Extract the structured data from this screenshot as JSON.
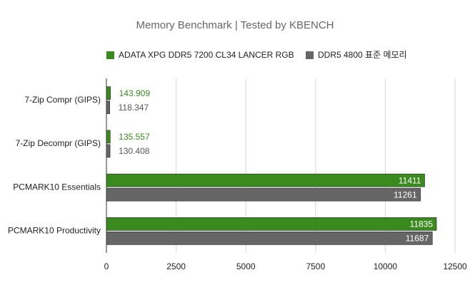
{
  "chart_data": {
    "type": "hbar",
    "title": "Memory Benchmark | Tested by KBENCH",
    "categories": [
      "7-Zip Compr (GIPS)",
      "7-Zip Decompr (GIPS)",
      "PCMARK10 Essentials",
      "PCMARK10 Productivity"
    ],
    "series": [
      {
        "name": "ADATA XPG DDR5 7200 CL34 LANCER RGB",
        "color": "#3b8a1f",
        "values": [
          143.909,
          135.557,
          11411,
          11835
        ]
      },
      {
        "name": "DDR5 4800 표준 메모리",
        "color": "#666666",
        "values": [
          118.347,
          130.408,
          11261,
          11687
        ]
      }
    ],
    "xlim": [
      0,
      12500
    ],
    "xticks": [
      0,
      2500,
      5000,
      7500,
      10000,
      12500
    ],
    "grid": true
  }
}
